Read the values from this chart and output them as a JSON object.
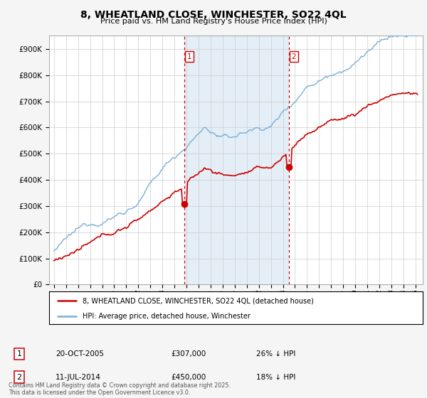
{
  "title": "8, WHEATLAND CLOSE, WINCHESTER, SO22 4QL",
  "subtitle": "Price paid vs. HM Land Registry's House Price Index (HPI)",
  "ylim": [
    0,
    950000
  ],
  "yticks": [
    0,
    100000,
    200000,
    300000,
    400000,
    500000,
    600000,
    700000,
    800000,
    900000
  ],
  "ytick_labels": [
    "£0",
    "£100K",
    "£200K",
    "£300K",
    "£400K",
    "£500K",
    "£600K",
    "£700K",
    "£800K",
    "£900K"
  ],
  "hpi_color": "#7bafd4",
  "price_color": "#cc0000",
  "vline_color": "#cc0000",
  "shade_color": "#deeaf4",
  "sale1_t": 2005.83,
  "sale1_p": 307000,
  "sale2_t": 2014.5,
  "sale2_p": 450000,
  "sale1_label": "20-OCT-2005",
  "sale1_price": "£307,000",
  "sale1_note": "26% ↓ HPI",
  "sale2_label": "11-JUL-2014",
  "sale2_price": "£450,000",
  "sale2_note": "18% ↓ HPI",
  "legend_line1": "8, WHEATLAND CLOSE, WINCHESTER, SO22 4QL (detached house)",
  "legend_line2": "HPI: Average price, detached house, Winchester",
  "footer": "Contains HM Land Registry data © Crown copyright and database right 2025.\nThis data is licensed under the Open Government Licence v3.0.",
  "bg_color": "#f5f5f5",
  "plot_bg": "#ffffff"
}
